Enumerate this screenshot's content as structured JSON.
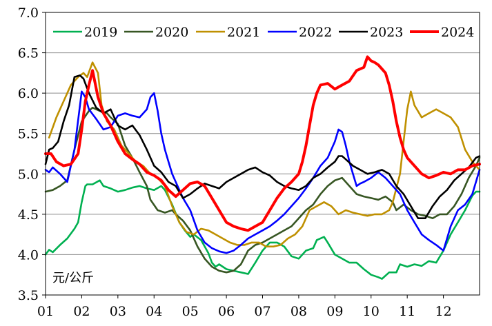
{
  "chart_data": {
    "type": "line",
    "ylabel": "元/公斤",
    "ylim": [
      3.5,
      7.0
    ],
    "yticks": [
      "3.5",
      "4.0",
      "4.5",
      "5.0",
      "5.5",
      "6.0",
      "6.5",
      "7.0"
    ],
    "xlim": [
      1,
      13
    ],
    "xticks": [
      "01",
      "02",
      "03",
      "04",
      "05",
      "06",
      "07",
      "08",
      "09",
      "10",
      "11",
      "12"
    ],
    "grid": "horizontal",
    "legend_position": "top",
    "series": [
      {
        "name": "2019",
        "color": "#00b050",
        "x": [
          1.0,
          1.1,
          1.2,
          1.4,
          1.6,
          1.8,
          1.9,
          2.0,
          2.1,
          2.15,
          2.3,
          2.5,
          2.6,
          2.8,
          3.0,
          3.2,
          3.4,
          3.6,
          3.8,
          4.0,
          4.2,
          4.3,
          4.5,
          4.7,
          4.85,
          5.0,
          5.1,
          5.3,
          5.5,
          5.6,
          5.7,
          5.8,
          6.0,
          6.2,
          6.4,
          6.6,
          6.8,
          7.0,
          7.2,
          7.4,
          7.6,
          7.8,
          8.0,
          8.2,
          8.4,
          8.5,
          8.7,
          8.8,
          9.0,
          9.2,
          9.4,
          9.6,
          9.8,
          10.0,
          10.2,
          10.3,
          10.5,
          10.7,
          10.8,
          11.0,
          11.2,
          11.4,
          11.6,
          11.8,
          12.0,
          12.2,
          12.4,
          12.6,
          12.8,
          12.9,
          13.0
        ],
        "y": [
          4.0,
          4.06,
          4.03,
          4.12,
          4.2,
          4.32,
          4.4,
          4.65,
          4.85,
          4.87,
          4.87,
          4.92,
          4.85,
          4.82,
          4.78,
          4.8,
          4.83,
          4.85,
          4.82,
          4.8,
          4.85,
          4.8,
          4.62,
          4.4,
          4.3,
          4.22,
          4.25,
          4.18,
          4.02,
          3.9,
          3.85,
          3.88,
          3.82,
          3.8,
          3.78,
          3.76,
          3.9,
          4.05,
          4.15,
          4.15,
          4.1,
          3.98,
          3.95,
          4.05,
          4.08,
          4.18,
          4.22,
          4.15,
          4.0,
          3.95,
          3.9,
          3.9,
          3.82,
          3.75,
          3.72,
          3.7,
          3.78,
          3.78,
          3.88,
          3.85,
          3.88,
          3.86,
          3.92,
          3.9,
          4.05,
          4.25,
          4.4,
          4.55,
          4.73,
          4.78,
          4.78
        ]
      },
      {
        "name": "2020",
        "color": "#375623",
        "x": [
          1.0,
          1.2,
          1.4,
          1.6,
          1.8,
          2.0,
          2.2,
          2.3,
          2.5,
          2.7,
          2.8,
          3.0,
          3.2,
          3.4,
          3.6,
          3.8,
          3.9,
          4.1,
          4.3,
          4.5,
          4.6,
          4.8,
          5.0,
          5.2,
          5.4,
          5.6,
          5.8,
          6.0,
          6.2,
          6.4,
          6.6,
          6.8,
          7.0,
          7.2,
          7.4,
          7.6,
          7.8,
          8.0,
          8.2,
          8.4,
          8.6,
          8.8,
          9.0,
          9.2,
          9.4,
          9.6,
          9.8,
          10.0,
          10.2,
          10.4,
          10.6,
          10.7,
          10.9,
          11.1,
          11.3,
          11.5,
          11.7,
          11.9,
          12.1,
          12.3,
          12.5,
          12.7,
          12.9,
          13.0
        ],
        "y": [
          4.78,
          4.8,
          4.85,
          4.92,
          5.3,
          5.65,
          5.78,
          5.82,
          5.78,
          5.75,
          5.7,
          5.62,
          5.35,
          5.2,
          5.02,
          4.85,
          4.68,
          4.55,
          4.52,
          4.55,
          4.5,
          4.42,
          4.3,
          4.1,
          3.95,
          3.85,
          3.8,
          3.78,
          3.8,
          3.88,
          4.05,
          4.12,
          4.15,
          4.2,
          4.25,
          4.3,
          4.35,
          4.45,
          4.55,
          4.62,
          4.75,
          4.85,
          4.92,
          4.95,
          4.85,
          4.75,
          4.72,
          4.7,
          4.68,
          4.72,
          4.65,
          4.55,
          4.62,
          4.55,
          4.5,
          4.48,
          4.45,
          4.5,
          4.5,
          4.6,
          4.75,
          4.95,
          5.1,
          5.2
        ]
      },
      {
        "name": "2021",
        "color": "#bf9000",
        "x": [
          1.1,
          1.3,
          1.5,
          1.7,
          1.9,
          2.05,
          2.15,
          2.3,
          2.45,
          2.55,
          2.7,
          2.9,
          3.1,
          3.3,
          3.5,
          3.7,
          3.9,
          4.1,
          4.3,
          4.5,
          4.7,
          4.9,
          5.1,
          5.3,
          5.5,
          5.7,
          5.9,
          6.1,
          6.3,
          6.5,
          6.7,
          6.9,
          7.1,
          7.3,
          7.5,
          7.7,
          7.9,
          8.1,
          8.3,
          8.5,
          8.7,
          8.9,
          9.1,
          9.3,
          9.5,
          9.7,
          9.9,
          10.1,
          10.3,
          10.5,
          10.6,
          10.8,
          10.9,
          11.0,
          11.1,
          11.2,
          11.4,
          11.6,
          11.8,
          12.0,
          12.2,
          12.4,
          12.6,
          12.8,
          13.0
        ],
        "y": [
          5.45,
          5.7,
          5.9,
          6.1,
          6.2,
          6.25,
          6.2,
          6.38,
          6.25,
          5.85,
          5.65,
          5.55,
          5.35,
          5.25,
          5.15,
          5.1,
          5.0,
          4.95,
          4.85,
          4.6,
          4.4,
          4.28,
          4.25,
          4.32,
          4.3,
          4.25,
          4.2,
          4.15,
          4.12,
          4.12,
          4.15,
          4.15,
          4.1,
          4.1,
          4.12,
          4.2,
          4.25,
          4.35,
          4.55,
          4.6,
          4.65,
          4.6,
          4.5,
          4.55,
          4.52,
          4.5,
          4.48,
          4.5,
          4.5,
          4.55,
          4.65,
          5.0,
          5.4,
          5.8,
          6.02,
          5.85,
          5.7,
          5.75,
          5.8,
          5.75,
          5.7,
          5.58,
          5.3,
          5.15,
          5.05
        ]
      },
      {
        "name": "2022",
        "color": "#0000ff",
        "x": [
          1.0,
          1.1,
          1.2,
          1.4,
          1.6,
          1.8,
          2.0,
          2.1,
          2.2,
          2.4,
          2.6,
          2.8,
          3.0,
          3.2,
          3.4,
          3.6,
          3.8,
          3.9,
          4.0,
          4.1,
          4.2,
          4.3,
          4.4,
          4.5,
          4.6,
          4.8,
          5.0,
          5.2,
          5.4,
          5.6,
          5.8,
          6.0,
          6.2,
          6.4,
          6.6,
          6.8,
          7.0,
          7.2,
          7.4,
          7.6,
          7.8,
          8.0,
          8.2,
          8.4,
          8.6,
          8.8,
          9.0,
          9.1,
          9.2,
          9.3,
          9.4,
          9.5,
          9.6,
          9.7,
          9.8,
          10.0,
          10.2,
          10.4,
          10.6,
          10.8,
          11.0,
          11.2,
          11.4,
          11.6,
          11.8,
          12.0,
          12.2,
          12.4,
          12.6,
          12.8,
          13.0
        ],
        "y": [
          5.05,
          5.02,
          5.08,
          5.0,
          4.9,
          5.3,
          6.02,
          5.95,
          5.8,
          5.68,
          5.55,
          5.58,
          5.72,
          5.75,
          5.72,
          5.7,
          5.8,
          5.95,
          6.0,
          5.78,
          5.5,
          5.3,
          5.15,
          5.0,
          4.9,
          4.7,
          4.55,
          4.3,
          4.15,
          4.08,
          4.04,
          4.02,
          4.05,
          4.12,
          4.2,
          4.25,
          4.3,
          4.35,
          4.42,
          4.5,
          4.6,
          4.7,
          4.82,
          4.95,
          5.1,
          5.2,
          5.4,
          5.55,
          5.52,
          5.35,
          5.15,
          5.0,
          4.85,
          4.88,
          4.9,
          4.95,
          5.02,
          4.95,
          4.85,
          4.75,
          4.55,
          4.4,
          4.25,
          4.18,
          4.12,
          4.05,
          4.35,
          4.55,
          4.62,
          4.75,
          5.05
        ]
      },
      {
        "name": "2023",
        "color": "#000000",
        "x": [
          1.0,
          1.1,
          1.2,
          1.35,
          1.5,
          1.65,
          1.8,
          1.95,
          2.05,
          2.2,
          2.4,
          2.6,
          2.8,
          3.0,
          3.2,
          3.4,
          3.6,
          3.8,
          4.0,
          4.2,
          4.4,
          4.6,
          4.8,
          5.0,
          5.2,
          5.4,
          5.6,
          5.8,
          6.0,
          6.2,
          6.4,
          6.6,
          6.8,
          7.0,
          7.2,
          7.4,
          7.6,
          7.8,
          8.0,
          8.2,
          8.4,
          8.6,
          8.8,
          9.0,
          9.1,
          9.2,
          9.3,
          9.5,
          9.7,
          9.9,
          10.1,
          10.3,
          10.5,
          10.7,
          10.9,
          11.1,
          11.3,
          11.5,
          11.7,
          11.9,
          12.1,
          12.3,
          12.5,
          12.7,
          12.9,
          13.0
        ],
        "y": [
          5.12,
          5.3,
          5.32,
          5.4,
          5.65,
          5.85,
          6.2,
          6.22,
          6.18,
          6.0,
          5.82,
          5.75,
          5.8,
          5.6,
          5.55,
          5.6,
          5.48,
          5.3,
          5.1,
          5.02,
          4.9,
          4.85,
          4.7,
          4.75,
          4.82,
          4.88,
          4.85,
          4.82,
          4.9,
          4.95,
          5.0,
          5.05,
          5.08,
          5.02,
          4.98,
          4.9,
          4.85,
          4.82,
          4.8,
          4.85,
          4.95,
          5.0,
          5.08,
          5.15,
          5.22,
          5.22,
          5.18,
          5.1,
          5.05,
          5.0,
          5.02,
          5.05,
          5.0,
          4.85,
          4.75,
          4.6,
          4.45,
          4.45,
          4.6,
          4.72,
          4.8,
          4.92,
          5.0,
          5.08,
          5.2,
          5.22
        ]
      },
      {
        "name": "2024",
        "color": "#ff0000",
        "x": [
          1.0,
          1.15,
          1.3,
          1.5,
          1.7,
          1.9,
          2.0,
          2.1,
          2.2,
          2.3,
          2.45,
          2.6,
          2.8,
          3.0,
          3.2,
          3.4,
          3.6,
          3.8,
          4.0,
          4.2,
          4.4,
          4.6,
          4.8,
          5.0,
          5.2,
          5.4,
          5.6,
          5.8,
          6.0,
          6.2,
          6.4,
          6.6,
          6.8,
          7.0,
          7.2,
          7.4,
          7.6,
          7.8,
          8.0,
          8.1,
          8.2,
          8.3,
          8.4,
          8.5,
          8.6,
          8.8,
          9.0,
          9.2,
          9.4,
          9.6,
          9.8,
          9.9,
          10.0,
          10.1,
          10.2,
          10.3,
          10.4,
          10.5,
          10.6,
          10.7,
          10.8,
          10.9,
          11.0,
          11.2,
          11.4,
          11.6,
          11.8,
          12.0,
          12.2,
          12.4,
          12.6,
          12.8,
          13.0
        ],
        "y": [
          5.25,
          5.25,
          5.15,
          5.1,
          5.12,
          5.25,
          5.55,
          5.9,
          6.1,
          6.28,
          5.95,
          5.75,
          5.6,
          5.4,
          5.25,
          5.18,
          5.12,
          5.02,
          4.98,
          4.92,
          4.8,
          4.72,
          4.8,
          4.88,
          4.9,
          4.85,
          4.7,
          4.55,
          4.4,
          4.35,
          4.32,
          4.3,
          4.35,
          4.4,
          4.55,
          4.7,
          4.82,
          4.9,
          5.0,
          5.15,
          5.35,
          5.6,
          5.85,
          6.0,
          6.1,
          6.12,
          6.05,
          6.1,
          6.15,
          6.28,
          6.32,
          6.45,
          6.4,
          6.38,
          6.35,
          6.3,
          6.25,
          6.1,
          5.9,
          5.65,
          5.45,
          5.3,
          5.2,
          5.1,
          5.0,
          4.95,
          4.98,
          5.02,
          5.0,
          5.05,
          5.05,
          5.1,
          5.12
        ]
      }
    ]
  }
}
